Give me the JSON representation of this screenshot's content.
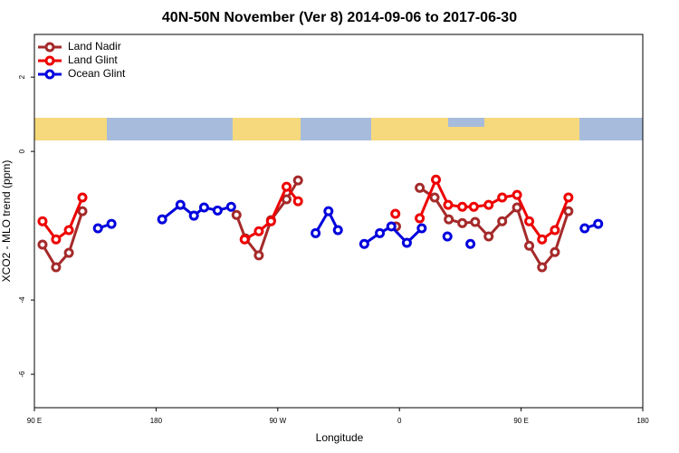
{
  "chart_data": {
    "type": "line",
    "title": "40N-50N November (Ver 8)   2014-09-06 to 2017-06-30",
    "x_label": "Longitude",
    "y_label": "XCO2 - MLO trend (ppm)",
    "xlim": [
      90,
      540
    ],
    "ylim": [
      -6.9,
      3.15
    ],
    "xticks": [
      {
        "value": 90,
        "label": "90 E"
      },
      180,
      {
        "value": 270,
        "label": "90 W"
      },
      {
        "value": 360,
        "label": "0"
      },
      {
        "value": 450,
        "label": "90 E"
      },
      {
        "value": 540,
        "label": "180"
      }
    ],
    "yticks": [
      -6,
      -4,
      0,
      2
    ],
    "legend": "top-left",
    "series": [
      {
        "name": "Land Nadir",
        "color": "#a52a2a",
        "x": [
          96,
          106,
          115.5,
          125.5,
          null,
          239.5,
          246,
          256,
          265,
          276.5,
          285,
          null,
          357.5,
          null,
          375,
          386,
          396.5,
          406.5,
          416,
          426,
          436,
          447,
          456,
          465.5,
          475,
          485
        ],
        "values": [
          -2.51,
          -3.12,
          -2.73,
          -1.61,
          null,
          -1.71,
          -2.34,
          -2.8,
          -1.85,
          -1.29,
          -0.78,
          null,
          -2.02,
          null,
          -0.98,
          -1.24,
          -1.83,
          -1.93,
          -1.9,
          -2.29,
          -1.88,
          -1.51,
          -2.54,
          -3.12,
          -2.71,
          -1.61
        ]
      },
      {
        "name": "Land Glint",
        "color": "#ee0000",
        "x": [
          96,
          106,
          115.5,
          125.5,
          null,
          245.5,
          256,
          265,
          276.5,
          285,
          null,
          357,
          null,
          375,
          387,
          396,
          406.5,
          415,
          426,
          436,
          447,
          456,
          465.5,
          475,
          485
        ],
        "values": [
          -1.88,
          -2.37,
          -2.12,
          -1.24,
          null,
          -2.37,
          -2.15,
          -1.88,
          -0.95,
          -1.34,
          null,
          -1.68,
          null,
          -1.8,
          -0.76,
          -1.44,
          -1.49,
          -1.49,
          -1.44,
          -1.24,
          -1.17,
          -1.88,
          -2.37,
          -2.12,
          -1.24
        ]
      },
      {
        "name": "Ocean Glint",
        "color": "#0000dd",
        "x": [
          137,
          147,
          null,
          184.5,
          198,
          208,
          215.5,
          225.5,
          235.5,
          null,
          298,
          307.5,
          314.5,
          null,
          334,
          345.5,
          354,
          365.5,
          376.5,
          null,
          395.5,
          null,
          412.5,
          null,
          497,
          507
        ],
        "values": [
          -2.07,
          -1.95,
          null,
          -1.83,
          -1.44,
          -1.73,
          -1.51,
          -1.59,
          -1.49,
          null,
          -2.2,
          -1.61,
          -2.12,
          null,
          -2.49,
          -2.2,
          -2.02,
          -2.46,
          -2.07,
          null,
          -2.29,
          null,
          -2.49,
          null,
          -2.07,
          -1.95
        ]
      }
    ]
  }
}
